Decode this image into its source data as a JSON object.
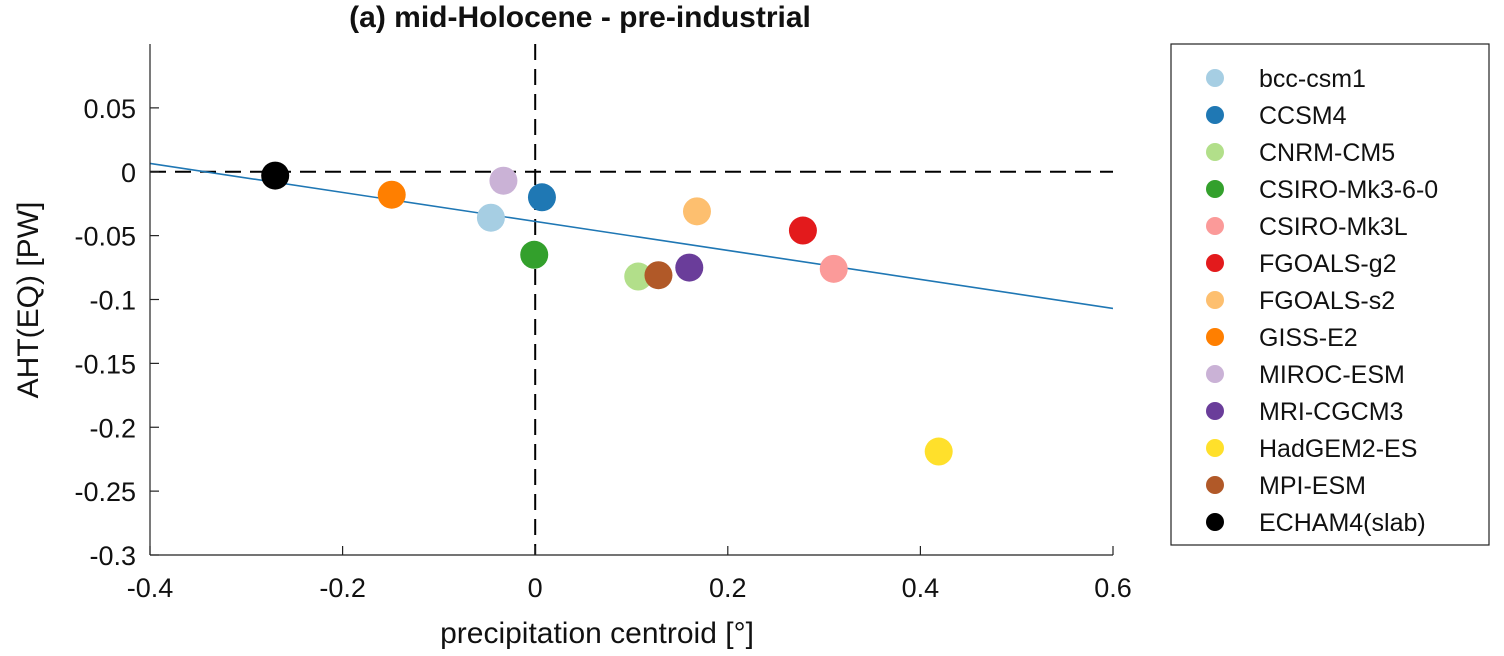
{
  "chart_data": {
    "type": "scatter",
    "title": "(a) mid-Holocene - pre-industrial",
    "xlabel": "precipitation centroid [°]",
    "ylabel": "AHT(EQ) [PW]",
    "xlim": [
      -0.4,
      0.6
    ],
    "ylim": [
      -0.3,
      0.1
    ],
    "x_ticks": [
      -0.4,
      -0.2,
      0,
      0.2,
      0.4,
      0.6
    ],
    "x_tick_labels": [
      "-0.4",
      "-0.2",
      "0",
      "0.2",
      "0.4",
      "0.6"
    ],
    "y_ticks": [
      -0.3,
      -0.25,
      -0.2,
      -0.15,
      -0.1,
      -0.05,
      0,
      0.05
    ],
    "y_tick_labels": [
      "-0.3",
      "-0.25",
      "-0.2",
      "-0.15",
      "-0.1",
      "-0.05",
      "0",
      "0.05"
    ],
    "grid": false,
    "legend_position": "outside-right",
    "reference_lines": [
      {
        "orientation": "horizontal",
        "value": 0,
        "style": "dashed",
        "color": "#000000"
      },
      {
        "orientation": "vertical",
        "value": 0,
        "style": "dashed",
        "color": "#000000"
      }
    ],
    "fit_line": {
      "color": "#1f77b4",
      "points": [
        {
          "x": -0.4,
          "y": 0.0065
        },
        {
          "x": 0.6,
          "y": -0.107
        }
      ]
    },
    "series": [
      {
        "name": "bcc-csm1",
        "x": -0.046,
        "y": -0.036,
        "color": "#a6cee3"
      },
      {
        "name": "CCSM4",
        "x": 0.007,
        "y": -0.02,
        "color": "#1f78b4"
      },
      {
        "name": "CNRM-CM5",
        "x": 0.107,
        "y": -0.082,
        "color": "#b2df8a"
      },
      {
        "name": "CSIRO-Mk3-6-0",
        "x": -0.001,
        "y": -0.065,
        "color": "#33a02c"
      },
      {
        "name": "CSIRO-Mk3L",
        "x": 0.31,
        "y": -0.076,
        "color": "#fb9a99"
      },
      {
        "name": "FGOALS-g2",
        "x": 0.278,
        "y": -0.046,
        "color": "#e31a1c"
      },
      {
        "name": "FGOALS-s2",
        "x": 0.168,
        "y": -0.031,
        "color": "#fdbf6f"
      },
      {
        "name": "GISS-E2",
        "x": -0.149,
        "y": -0.018,
        "color": "#ff7f00"
      },
      {
        "name": "MIROC-ESM",
        "x": -0.033,
        "y": -0.007,
        "color": "#cab2d6"
      },
      {
        "name": "MRI-CGCM3",
        "x": 0.16,
        "y": -0.075,
        "color": "#6a3d9a"
      },
      {
        "name": "HadGEM2-ES",
        "x": 0.419,
        "y": -0.219,
        "color": "#ffe02b"
      },
      {
        "name": "MPI-ESM",
        "x": 0.128,
        "y": -0.081,
        "color": "#b15928"
      },
      {
        "name": "ECHAM4(slab)",
        "x": -0.27,
        "y": -0.003,
        "color": "#000000"
      }
    ]
  }
}
